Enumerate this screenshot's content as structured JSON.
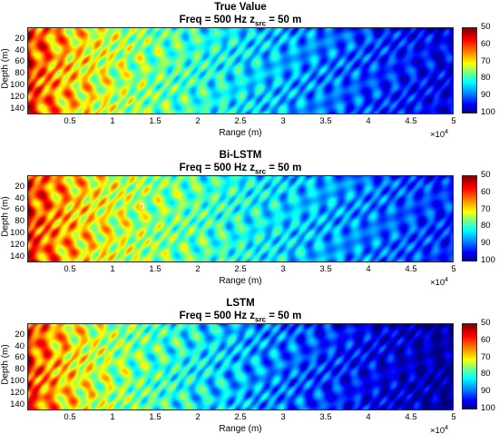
{
  "chart_data": [
    {
      "type": "heatmap",
      "title": "True Value",
      "subtitle": "Freq = 500 Hz   z",
      "subtitle_sub": "src",
      "subtitle_tail": " = 50 m",
      "xlabel": "Range (m)",
      "ylabel": "Depth (m)",
      "x_ticks": [
        "0.5",
        "1",
        "1.5",
        "2",
        "2.5",
        "3",
        "3.5",
        "4",
        "4.5",
        "5"
      ],
      "x_tick_values": [
        0.5,
        1,
        1.5,
        2,
        2.5,
        3,
        3.5,
        4,
        4.5,
        5
      ],
      "x_exponent": "×10",
      "x_exponent_power": "4",
      "xlim": [
        0,
        5
      ],
      "y_ticks": [
        "20",
        "40",
        "60",
        "80",
        "100",
        "120",
        "140"
      ],
      "y_tick_values": [
        20,
        40,
        60,
        80,
        100,
        120,
        140
      ],
      "ylim": [
        0,
        150
      ],
      "y_reversed": true,
      "colorbar_ticks": [
        "50",
        "60",
        "70",
        "80",
        "90",
        "100"
      ],
      "colorbar_tick_values": [
        50,
        60,
        70,
        80,
        90,
        100
      ],
      "clim": [
        50,
        100
      ],
      "colormap": "jet (reversed: 50 red, 100 dark blue)",
      "field_decay": {
        "near_range_value": 55,
        "far_range_value": 95
      }
    },
    {
      "type": "heatmap",
      "title": "Bi-LSTM",
      "subtitle": "Freq = 500 Hz   z",
      "subtitle_sub": "src",
      "subtitle_tail": " = 50 m",
      "xlabel": "Range (m)",
      "ylabel": "Depth (m)",
      "x_ticks": [
        "0.5",
        "1",
        "1.5",
        "2",
        "2.5",
        "3",
        "3.5",
        "4",
        "4.5",
        "5"
      ],
      "x_tick_values": [
        0.5,
        1,
        1.5,
        2,
        2.5,
        3,
        3.5,
        4,
        4.5,
        5
      ],
      "x_exponent": "×10",
      "x_exponent_power": "4",
      "xlim": [
        0,
        5
      ],
      "y_ticks": [
        "20",
        "40",
        "60",
        "80",
        "100",
        "120",
        "140"
      ],
      "y_tick_values": [
        20,
        40,
        60,
        80,
        100,
        120,
        140
      ],
      "ylim": [
        0,
        150
      ],
      "y_reversed": true,
      "colorbar_ticks": [
        "50",
        "60",
        "70",
        "80",
        "90",
        "100"
      ],
      "colorbar_tick_values": [
        50,
        60,
        70,
        80,
        90,
        100
      ],
      "clim": [
        50,
        100
      ],
      "colormap": "jet (reversed: 50 red, 100 dark blue)",
      "field_decay": {
        "near_range_value": 55,
        "far_range_value": 92
      }
    },
    {
      "type": "heatmap",
      "title": "LSTM",
      "subtitle": "Freq = 500 Hz   z",
      "subtitle_sub": "src",
      "subtitle_tail": " = 50 m",
      "xlabel": "Range (m)",
      "ylabel": "Depth (m)",
      "x_ticks": [
        "0.5",
        "1",
        "1.5",
        "2",
        "2.5",
        "3",
        "3.5",
        "4",
        "4.5",
        "5"
      ],
      "x_tick_values": [
        0.5,
        1,
        1.5,
        2,
        2.5,
        3,
        3.5,
        4,
        4.5,
        5
      ],
      "x_exponent": "×10",
      "x_exponent_power": "4",
      "xlim": [
        0,
        5
      ],
      "y_ticks": [
        "20",
        "40",
        "60",
        "80",
        "100",
        "120",
        "140"
      ],
      "y_tick_values": [
        20,
        40,
        60,
        80,
        100,
        120,
        140
      ],
      "ylim": [
        0,
        150
      ],
      "y_reversed": true,
      "colorbar_ticks": [
        "50",
        "60",
        "70",
        "80",
        "90",
        "100"
      ],
      "colorbar_tick_values": [
        50,
        60,
        70,
        80,
        90,
        100
      ],
      "clim": [
        50,
        100
      ],
      "colormap": "jet (reversed: 50 red, 100 dark blue)",
      "field_decay": {
        "near_range_value": 55,
        "far_range_value": 99
      }
    }
  ]
}
